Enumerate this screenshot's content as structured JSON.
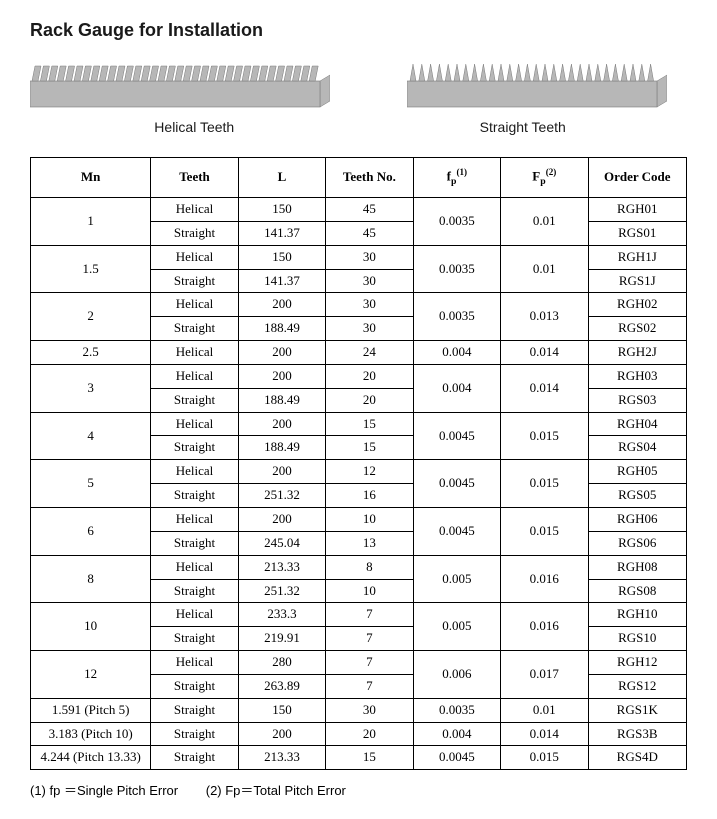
{
  "title": "Rack Gauge for Installation",
  "images": {
    "helical": {
      "caption": "Helical Teeth",
      "bar_fill": "#b7b7b7",
      "bar_edge": "#7a7a7a"
    },
    "straight": {
      "caption": "Straight Teeth",
      "bar_fill": "#b7b7b7",
      "bar_edge": "#7a7a7a"
    }
  },
  "columns": {
    "mn": "Mn",
    "teeth": "Teeth",
    "l": "L",
    "teeth_no": "Teeth No.",
    "fp_small_html": "f<sub class='sub'>p</sub><sup>(1)</sup>",
    "fp_big_html": "F<sub class='sub'>p</sub><sup>(2)</sup>",
    "order_code": "Order Code"
  },
  "groups": [
    {
      "mn": "1",
      "fp": "0.0035",
      "Fp": "0.01",
      "rows": [
        {
          "teeth": "Helical",
          "L": "150",
          "tn": "45",
          "oc": "RGH01"
        },
        {
          "teeth": "Straight",
          "L": "141.37",
          "tn": "45",
          "oc": "RGS01"
        }
      ]
    },
    {
      "mn": "1.5",
      "fp": "0.0035",
      "Fp": "0.01",
      "rows": [
        {
          "teeth": "Helical",
          "L": "150",
          "tn": "30",
          "oc": "RGH1J"
        },
        {
          "teeth": "Straight",
          "L": "141.37",
          "tn": "30",
          "oc": "RGS1J"
        }
      ]
    },
    {
      "mn": "2",
      "fp": "0.0035",
      "Fp": "0.013",
      "rows": [
        {
          "teeth": "Helical",
          "L": "200",
          "tn": "30",
          "oc": "RGH02"
        },
        {
          "teeth": "Straight",
          "L": "188.49",
          "tn": "30",
          "oc": "RGS02"
        }
      ]
    },
    {
      "mn": "2.5",
      "fp": "0.004",
      "Fp": "0.014",
      "rows": [
        {
          "teeth": "Helical",
          "L": "200",
          "tn": "24",
          "oc": "RGH2J"
        }
      ]
    },
    {
      "mn": "3",
      "fp": "0.004",
      "Fp": "0.014",
      "rows": [
        {
          "teeth": "Helical",
          "L": "200",
          "tn": "20",
          "oc": "RGH03"
        },
        {
          "teeth": "Straight",
          "L": "188.49",
          "tn": "20",
          "oc": "RGS03"
        }
      ]
    },
    {
      "mn": "4",
      "fp": "0.0045",
      "Fp": "0.015",
      "rows": [
        {
          "teeth": "Helical",
          "L": "200",
          "tn": "15",
          "oc": "RGH04"
        },
        {
          "teeth": "Straight",
          "L": "188.49",
          "tn": "15",
          "oc": "RGS04"
        }
      ]
    },
    {
      "mn": "5",
      "fp": "0.0045",
      "Fp": "0.015",
      "rows": [
        {
          "teeth": "Helical",
          "L": "200",
          "tn": "12",
          "oc": "RGH05"
        },
        {
          "teeth": "Straight",
          "L": "251.32",
          "tn": "16",
          "oc": "RGS05"
        }
      ]
    },
    {
      "mn": "6",
      "fp": "0.0045",
      "Fp": "0.015",
      "rows": [
        {
          "teeth": "Helical",
          "L": "200",
          "tn": "10",
          "oc": "RGH06"
        },
        {
          "teeth": "Straight",
          "L": "245.04",
          "tn": "13",
          "oc": "RGS06"
        }
      ]
    },
    {
      "mn": "8",
      "fp": "0.005",
      "Fp": "0.016",
      "rows": [
        {
          "teeth": "Helical",
          "L": "213.33",
          "tn": "8",
          "oc": "RGH08"
        },
        {
          "teeth": "Straight",
          "L": "251.32",
          "tn": "10",
          "oc": "RGS08"
        }
      ]
    },
    {
      "mn": "10",
      "fp": "0.005",
      "Fp": "0.016",
      "rows": [
        {
          "teeth": "Helical",
          "L": "233.3",
          "tn": "7",
          "oc": "RGH10"
        },
        {
          "teeth": "Straight",
          "L": "219.91",
          "tn": "7",
          "oc": "RGS10"
        }
      ]
    },
    {
      "mn": "12",
      "fp": "0.006",
      "Fp": "0.017",
      "rows": [
        {
          "teeth": "Helical",
          "L": "280",
          "tn": "7",
          "oc": "RGH12"
        },
        {
          "teeth": "Straight",
          "L": "263.89",
          "tn": "7",
          "oc": "RGS12"
        }
      ]
    },
    {
      "mn": "1.591  (Pitch 5)",
      "fp": "0.0035",
      "Fp": "0.01",
      "rows": [
        {
          "teeth": "Straight",
          "L": "150",
          "tn": "30",
          "oc": "RGS1K"
        }
      ]
    },
    {
      "mn": "3.183  (Pitch 10)",
      "fp": "0.004",
      "Fp": "0.014",
      "rows": [
        {
          "teeth": "Straight",
          "L": "200",
          "tn": "20",
          "oc": "RGS3B"
        }
      ]
    },
    {
      "mn": "4.244  (Pitch 13.33)",
      "fp": "0.0045",
      "Fp": "0.015",
      "rows": [
        {
          "teeth": "Straight",
          "L": "213.33",
          "tn": "15",
          "oc": "RGS4D"
        }
      ]
    }
  ],
  "footnotes": {
    "n1": "(1) fp ＝Single Pitch Error",
    "n2": "(2) Fp＝Total Pitch Error"
  }
}
